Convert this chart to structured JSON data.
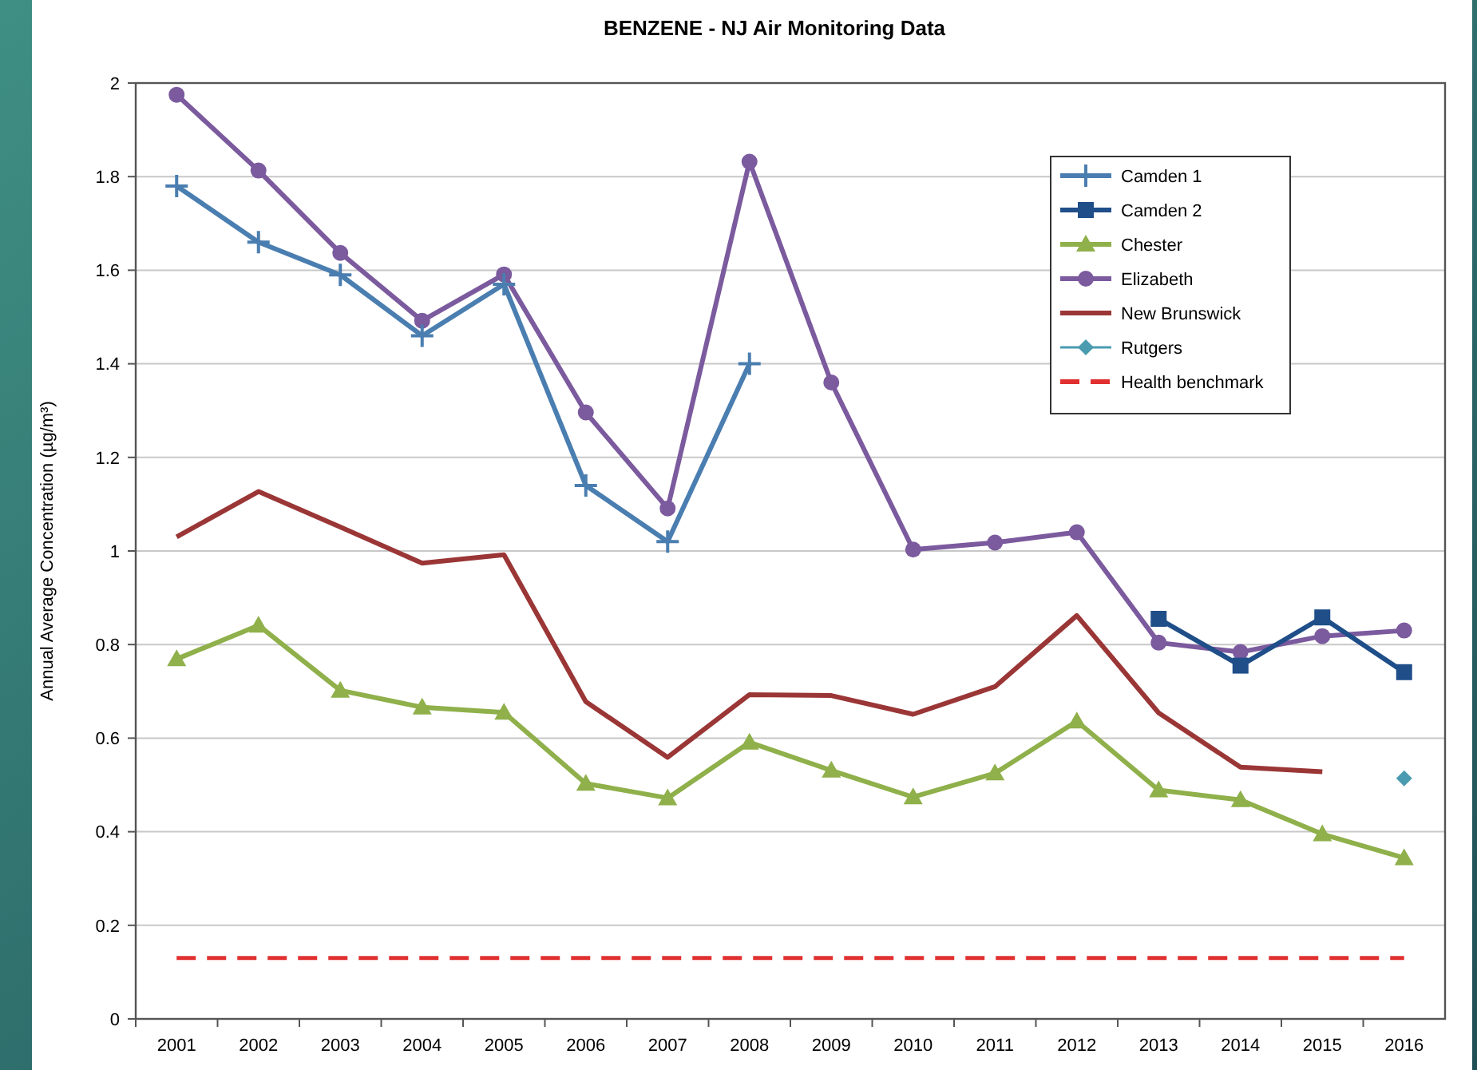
{
  "chart_data": {
    "type": "line",
    "title": "BENZENE - NJ Air Monitoring Data",
    "ylabel": "Annual Average Concentration (µg/m³)",
    "categories": [
      "2001",
      "2002",
      "2003",
      "2004",
      "2005",
      "2006",
      "2007",
      "2008",
      "2009",
      "2010",
      "2011",
      "2012",
      "2013",
      "2014",
      "2015",
      "2016"
    ],
    "ylim": [
      0,
      2
    ],
    "yticks": [
      0,
      0.2,
      0.4,
      0.6,
      0.8,
      1,
      1.2,
      1.4,
      1.6,
      1.8,
      2
    ],
    "grid": "y",
    "legend": "top right",
    "series": [
      {
        "name": "Camden 1",
        "color": "#4a7eb0",
        "marker": "cross",
        "values": [
          1.78,
          1.66,
          1.59,
          1.46,
          1.57,
          1.14,
          1.02,
          1.4,
          null,
          null,
          null,
          null,
          null,
          null,
          null,
          null
        ]
      },
      {
        "name": "Camden 2",
        "color": "#1f4e89",
        "marker": "square",
        "values": [
          null,
          null,
          null,
          null,
          null,
          null,
          null,
          null,
          null,
          null,
          null,
          null,
          0.855,
          0.755,
          0.858,
          0.741
        ]
      },
      {
        "name": "Chester",
        "color": "#8fb04a",
        "marker": "triangle",
        "values": [
          0.769,
          0.841,
          0.702,
          0.666,
          0.655,
          0.503,
          0.472,
          0.591,
          0.531,
          0.474,
          0.525,
          0.636,
          0.489,
          0.468,
          0.395,
          0.344
        ]
      },
      {
        "name": "Elizabeth",
        "color": "#7b5a9e",
        "marker": "circle",
        "values": [
          1.975,
          1.813,
          1.637,
          1.492,
          1.591,
          1.296,
          1.091,
          1.832,
          1.36,
          1.003,
          1.018,
          1.04,
          0.804,
          0.784,
          0.818,
          0.83
        ]
      },
      {
        "name": "New Brunswick",
        "color": "#9b3636",
        "marker": "none",
        "values": [
          1.03,
          1.127,
          1.051,
          0.974,
          0.992,
          0.678,
          0.559,
          0.693,
          0.691,
          0.651,
          0.71,
          0.862,
          0.654,
          0.538,
          0.528,
          null
        ]
      },
      {
        "name": "Rutgers",
        "color": "#4a9bb0",
        "marker": "diamond",
        "values": [
          null,
          null,
          null,
          null,
          null,
          null,
          null,
          null,
          null,
          null,
          null,
          null,
          null,
          null,
          null,
          0.514
        ]
      },
      {
        "name": "Health benchmark",
        "color": "#e03030",
        "marker": "none",
        "line_style": "dashed",
        "values": [
          0.13,
          0.13,
          0.13,
          0.13,
          0.13,
          0.13,
          0.13,
          0.13,
          0.13,
          0.13,
          0.13,
          0.13,
          0.13,
          0.13,
          0.13,
          0.13
        ]
      }
    ]
  }
}
